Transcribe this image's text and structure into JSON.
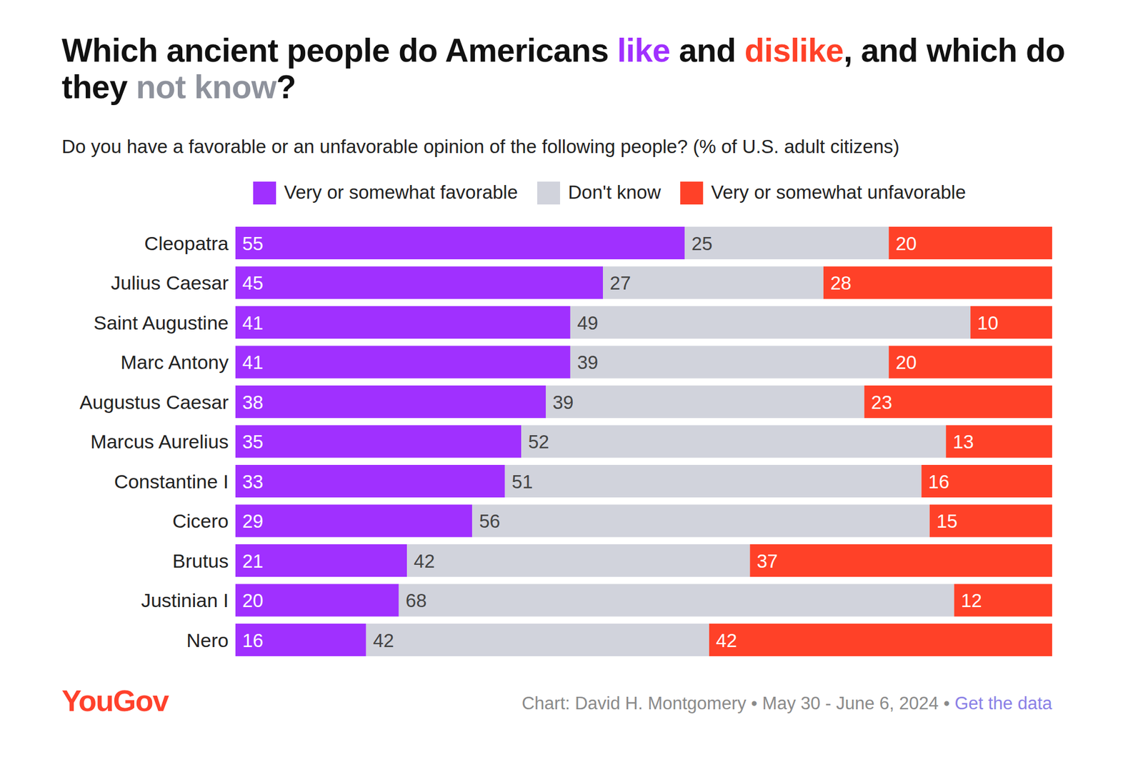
{
  "chart_data": {
    "type": "bar",
    "orientation": "horizontal",
    "stacked": true,
    "data_labels": true,
    "tick_labels": "y",
    "grid": false,
    "legend": "top",
    "title": [
      {
        "text": "Which ancient people do Americans "
      },
      {
        "text": "like",
        "color": "#a030ff"
      },
      {
        "text": " and "
      },
      {
        "text": "dislike",
        "color": "#ff4128"
      },
      {
        "text": ", and which do they "
      },
      {
        "text": "not know",
        "color": "#8e929c"
      },
      {
        "text": "?"
      }
    ],
    "subtitle": "Do you have a favorable or an unfavorable opinion of the following people? (% of U.S. adult citizens)",
    "categories": [
      "Cleopatra",
      "Julius Caesar",
      "Saint Augustine",
      "Marc Antony",
      "Augustus Caesar",
      "Marcus Aurelius",
      "Constantine I",
      "Cicero",
      "Brutus",
      "Justinian I",
      "Nero"
    ],
    "series": [
      {
        "name": "Very or somewhat favorable",
        "color": "#a030ff",
        "values": [
          55,
          45,
          41,
          41,
          38,
          35,
          33,
          29,
          21,
          20,
          16
        ]
      },
      {
        "name": "Don't know",
        "color": "#d1d3dc",
        "values": [
          25,
          27,
          49,
          39,
          39,
          52,
          51,
          56,
          42,
          68,
          42
        ]
      },
      {
        "name": "Very or somewhat unfavorable",
        "color": "#ff4128",
        "values": [
          20,
          28,
          10,
          20,
          23,
          13,
          16,
          15,
          37,
          12,
          42
        ]
      }
    ],
    "xlim": [
      0,
      100
    ],
    "logo": "YouGov",
    "source": "Chart: David H. Montgomery • May 30 - June 6, 2024 •",
    "source_link": "Get the data"
  }
}
